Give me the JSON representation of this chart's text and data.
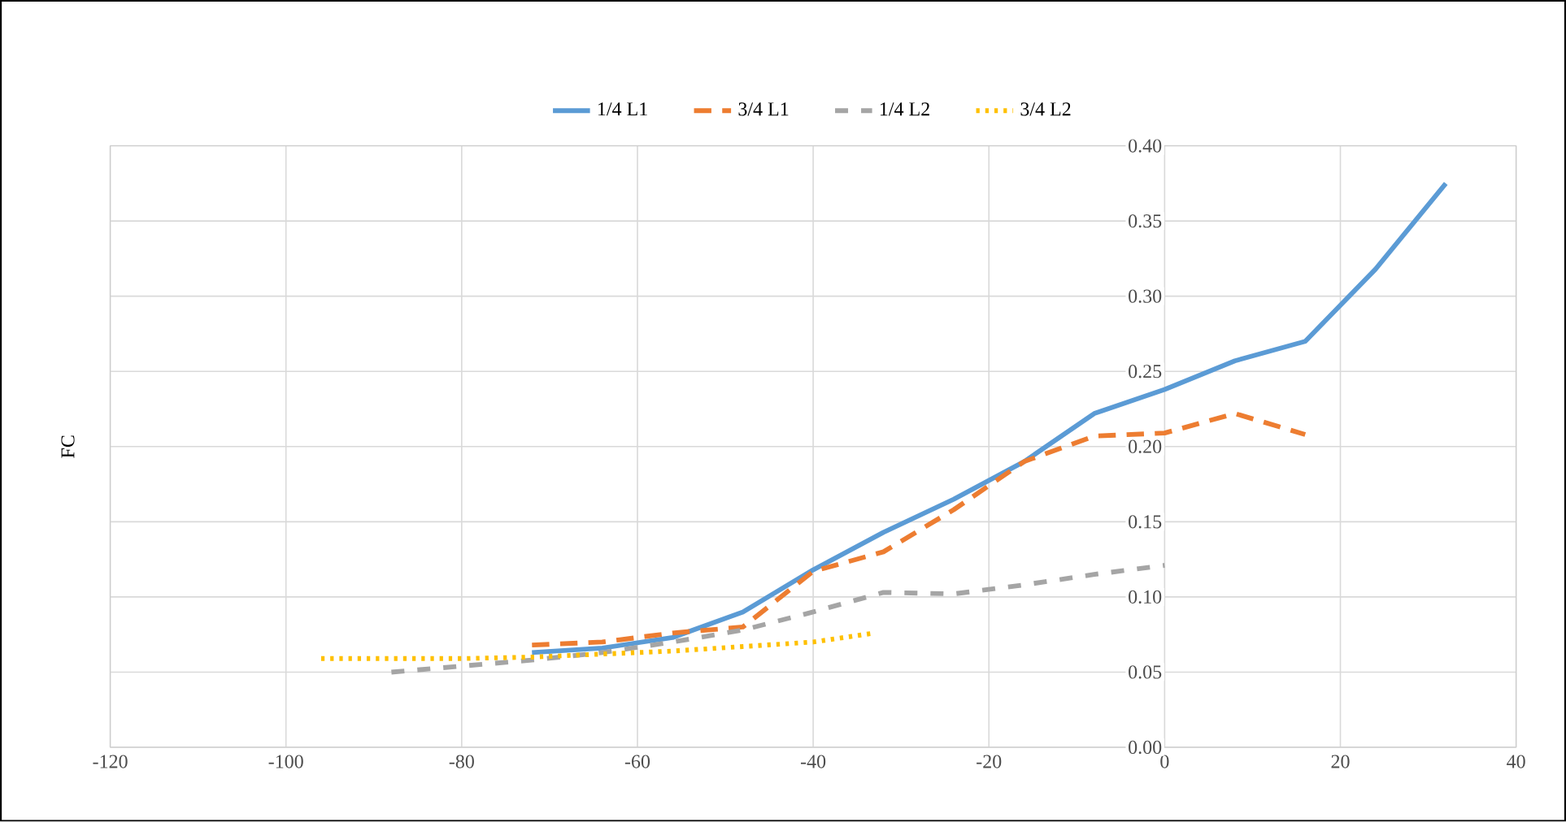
{
  "chart_data": {
    "type": "line",
    "ylabel": "FC",
    "xlim": [
      -120,
      40
    ],
    "xticks": [
      -120,
      -100,
      -80,
      -60,
      -40,
      -20,
      0,
      20,
      40
    ],
    "ylim": [
      0,
      0.4
    ],
    "yticks": [
      {
        "value": 0,
        "label": "0.00"
      },
      {
        "value": 0.05,
        "label": "0.05"
      },
      {
        "value": 0.1,
        "label": "0.10"
      },
      {
        "value": 0.15,
        "label": "0.15"
      },
      {
        "value": 0.2,
        "label": "0.20"
      },
      {
        "value": 0.25,
        "label": "0.25"
      },
      {
        "value": 0.3,
        "label": "0.30"
      },
      {
        "value": 0.35,
        "label": "0.35"
      },
      {
        "value": 0.4,
        "label": "0.40"
      }
    ],
    "grid": true,
    "legend": "top",
    "marker": "none",
    "series": [
      {
        "name": "1/4 L1",
        "color": "#5b9bd5",
        "line_style": "solid",
        "x": [
          -72,
          -64,
          -56,
          -48,
          -40,
          -32,
          -24,
          -16,
          -8,
          0,
          8,
          16,
          24,
          32
        ],
        "values": [
          0.063,
          0.066,
          0.073,
          0.09,
          0.118,
          0.143,
          0.165,
          0.19,
          0.222,
          0.238,
          0.257,
          0.27,
          0.318,
          0.375
        ]
      },
      {
        "name": "3/4 L1",
        "color": "#ed7d31",
        "line_style": "dashed",
        "x": [
          -72,
          -64,
          -56,
          -48,
          -40,
          -32,
          -24,
          -16,
          -8,
          0,
          8,
          16
        ],
        "values": [
          0.068,
          0.07,
          0.076,
          0.08,
          0.117,
          0.13,
          0.158,
          0.19,
          0.207,
          0.209,
          0.222,
          0.208
        ]
      },
      {
        "name": "1/4 L2",
        "color": "#a5a5a5",
        "line_style": "dashed",
        "x": [
          -88,
          -80,
          -72,
          -64,
          -56,
          -48,
          -40,
          -32,
          -24,
          -16,
          -8,
          0
        ],
        "values": [
          0.05,
          0.054,
          0.058,
          0.063,
          0.07,
          0.078,
          0.09,
          0.103,
          0.102,
          0.108,
          0.115,
          0.121
        ]
      },
      {
        "name": "3/4 L2",
        "color": "#ffc000",
        "line_style": "dotted",
        "x": [
          -96,
          -88,
          -80,
          -72,
          -64,
          -56,
          -48,
          -40,
          -33
        ],
        "values": [
          0.059,
          0.059,
          0.059,
          0.06,
          0.062,
          0.064,
          0.067,
          0.07,
          0.076
        ]
      }
    ]
  }
}
